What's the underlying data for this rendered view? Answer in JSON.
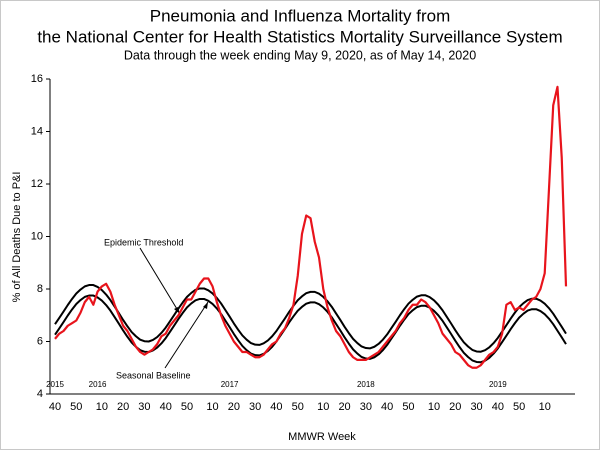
{
  "chart_data": {
    "type": "line",
    "title": [
      "Pneumonia and Influenza Mortality from",
      "the National Center for Health Statistics Mortality Surveillance System"
    ],
    "subtitle": "Data through the week ending May 9, 2020, as of May 14, 2020",
    "y_label": "% of All Deaths Due to P&I",
    "x_label": "MMWR Week",
    "ylim": [
      4,
      16
    ],
    "yticks": [
      4,
      6,
      8,
      10,
      12,
      14,
      16
    ],
    "grid": false,
    "categories": [
      "40",
      null,
      null,
      null,
      null,
      "50",
      null,
      null,
      null,
      null,
      null,
      "10",
      null,
      null,
      null,
      null,
      "20",
      null,
      null,
      null,
      null,
      "30",
      null,
      null,
      null,
      null,
      "40",
      null,
      null,
      null,
      null,
      "50",
      null,
      null,
      null,
      null,
      null,
      "10",
      null,
      null,
      null,
      null,
      "20",
      null,
      null,
      null,
      null,
      "30",
      null,
      null,
      null,
      null,
      "40",
      null,
      null,
      null,
      null,
      "50",
      null,
      null,
      null,
      null,
      null,
      "10",
      null,
      null,
      null,
      null,
      "20",
      null,
      null,
      null,
      null,
      "30",
      null,
      null,
      null,
      null,
      "40",
      null,
      null,
      null,
      null,
      "50",
      null,
      null,
      null,
      null,
      null,
      "10",
      null,
      null,
      null,
      null,
      "20",
      null,
      null,
      null,
      null,
      "30",
      null,
      null,
      null,
      null,
      "40",
      null,
      null,
      null,
      null,
      "50",
      null,
      null,
      null,
      null,
      null,
      "10",
      null,
      null,
      null,
      null,
      null
    ],
    "year_labels": [
      "2015",
      null,
      null,
      null,
      null,
      null,
      null,
      null,
      null,
      null,
      "2016",
      null,
      null,
      null,
      null,
      null,
      null,
      null,
      null,
      null,
      null,
      null,
      null,
      null,
      null,
      null,
      null,
      null,
      null,
      null,
      null,
      null,
      null,
      null,
      null,
      null,
      null,
      null,
      null,
      null,
      null,
      "2017",
      null,
      null,
      null,
      null,
      null,
      null,
      null,
      null,
      null,
      null,
      null,
      null,
      null,
      null,
      null,
      null,
      null,
      null,
      null,
      null,
      null,
      null,
      null,
      null,
      null,
      null,
      null,
      null,
      null,
      null,
      null,
      "2018",
      null,
      null,
      null,
      null,
      null,
      null,
      null,
      null,
      null,
      null,
      null,
      null,
      null,
      null,
      null,
      null,
      null,
      null,
      null,
      null,
      null,
      null,
      null,
      null,
      null,
      null,
      null,
      null,
      null,
      null,
      "2019",
      null,
      null,
      null,
      null,
      null,
      null,
      null,
      null,
      null,
      null,
      null,
      null,
      null,
      null,
      null,
      null
    ],
    "series": [
      {
        "color": "#e8141c",
        "width": 2.2,
        "values": [
          6.1,
          6.3,
          6.4,
          6.6,
          6.7,
          6.8,
          7.1,
          7.5,
          7.7,
          7.4,
          7.9,
          8.1,
          8.2,
          7.9,
          7.4,
          7.0,
          6.6,
          6.4,
          6.1,
          5.8,
          5.6,
          5.5,
          5.6,
          5.7,
          5.9,
          6.2,
          6.3,
          6.6,
          6.8,
          7.0,
          7.3,
          7.6,
          7.6,
          7.9,
          8.2,
          8.4,
          8.4,
          8.1,
          7.5,
          7.0,
          6.6,
          6.3,
          6.0,
          5.8,
          5.6,
          5.6,
          5.5,
          5.4,
          5.4,
          5.5,
          5.7,
          5.9,
          6.0,
          6.3,
          6.5,
          6.9,
          7.4,
          8.5,
          10.1,
          10.8,
          10.7,
          9.8,
          9.2,
          8.0,
          7.3,
          6.8,
          6.4,
          6.2,
          5.9,
          5.6,
          5.4,
          5.3,
          5.3,
          5.3,
          5.4,
          5.5,
          5.6,
          5.8,
          6.0,
          6.2,
          6.4,
          6.7,
          6.9,
          7.2,
          7.4,
          7.4,
          7.6,
          7.5,
          7.3,
          7.0,
          6.7,
          6.3,
          6.1,
          5.9,
          5.6,
          5.5,
          5.3,
          5.1,
          5.0,
          5.0,
          5.1,
          5.3,
          5.5,
          5.6,
          5.8,
          6.3,
          7.4,
          7.5,
          7.2,
          7.3,
          7.2,
          7.4,
          7.6,
          7.7,
          8.0,
          8.6,
          11.8,
          15.0,
          15.7,
          13.0,
          8.1
        ]
      },
      {
        "name": "Epidemic Threshold",
        "color": "#000000",
        "width": 2,
        "values": [
          6.66,
          6.9,
          7.14,
          7.39,
          7.62,
          7.83,
          7.98,
          8.1,
          8.15,
          8.15,
          8.08,
          7.96,
          7.79,
          7.58,
          7.33,
          7.08,
          6.82,
          6.58,
          6.36,
          6.2,
          6.07,
          6.01,
          6.0,
          6.06,
          6.17,
          6.33,
          6.53,
          6.77,
          7.01,
          7.26,
          7.49,
          7.7,
          7.85,
          7.97,
          8.02,
          8.02,
          7.95,
          7.83,
          7.66,
          7.45,
          7.2,
          6.95,
          6.69,
          6.45,
          6.23,
          6.07,
          5.94,
          5.88,
          5.87,
          5.93,
          6.04,
          6.2,
          6.4,
          6.64,
          6.88,
          7.13,
          7.36,
          7.57,
          7.72,
          7.84,
          7.89,
          7.89,
          7.82,
          7.7,
          7.53,
          7.32,
          7.07,
          6.82,
          6.56,
          6.32,
          6.1,
          5.94,
          5.81,
          5.75,
          5.74,
          5.8,
          5.91,
          6.07,
          6.27,
          6.51,
          6.75,
          7.0,
          7.23,
          7.44,
          7.59,
          7.71,
          7.76,
          7.76,
          7.69,
          7.57,
          7.4,
          7.19,
          6.94,
          6.69,
          6.43,
          6.19,
          5.97,
          5.81,
          5.68,
          5.62,
          5.61,
          5.67,
          5.78,
          5.94,
          6.14,
          6.38,
          6.62,
          6.87,
          7.1,
          7.31,
          7.46,
          7.58,
          7.63,
          7.63,
          7.56,
          7.44,
          7.27,
          7.06,
          6.81,
          6.56,
          6.3
        ]
      },
      {
        "name": "Seasonal Baseline",
        "color": "#000000",
        "width": 2,
        "values": [
          6.26,
          6.5,
          6.74,
          6.99,
          7.22,
          7.43,
          7.58,
          7.7,
          7.75,
          7.75,
          7.68,
          7.56,
          7.39,
          7.18,
          6.93,
          6.68,
          6.42,
          6.18,
          5.96,
          5.8,
          5.67,
          5.61,
          5.6,
          5.66,
          5.77,
          5.93,
          6.13,
          6.37,
          6.61,
          6.86,
          7.09,
          7.3,
          7.45,
          7.57,
          7.62,
          7.62,
          7.55,
          7.43,
          7.26,
          7.05,
          6.8,
          6.55,
          6.29,
          6.05,
          5.83,
          5.67,
          5.54,
          5.48,
          5.47,
          5.53,
          5.64,
          5.8,
          6.0,
          6.24,
          6.48,
          6.73,
          6.96,
          7.17,
          7.32,
          7.44,
          7.49,
          7.49,
          7.42,
          7.3,
          7.13,
          6.92,
          6.67,
          6.42,
          6.16,
          5.92,
          5.7,
          5.54,
          5.41,
          5.35,
          5.34,
          5.4,
          5.51,
          5.67,
          5.87,
          6.11,
          6.35,
          6.6,
          6.83,
          7.04,
          7.19,
          7.31,
          7.36,
          7.36,
          7.29,
          7.17,
          7.0,
          6.79,
          6.54,
          6.29,
          6.03,
          5.79,
          5.57,
          5.41,
          5.28,
          5.22,
          5.21,
          5.27,
          5.38,
          5.54,
          5.74,
          5.98,
          6.22,
          6.47,
          6.7,
          6.91,
          7.06,
          7.18,
          7.23,
          7.23,
          7.16,
          7.04,
          6.87,
          6.66,
          6.41,
          6.16,
          5.9
        ]
      }
    ]
  }
}
